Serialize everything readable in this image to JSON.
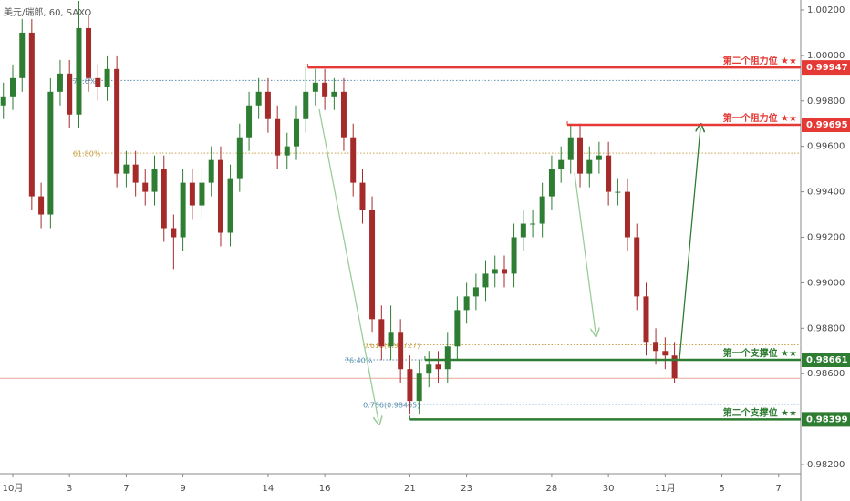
{
  "chart_data": {
    "type": "candlestick",
    "title": "美元/瑞郎, 60, SAXO",
    "x": [
      -0.33,
      0,
      0.33,
      0.67,
      1,
      1.33,
      1.67,
      2,
      2.33,
      2.67,
      3,
      3.33,
      3.67,
      4,
      4.33,
      4.67,
      5,
      5.33,
      5.67,
      6,
      6.33,
      6.67,
      7,
      7.33,
      7.67,
      8,
      8.33,
      8.67,
      9,
      9.33,
      9.67,
      10,
      10.33,
      10.67,
      11,
      11.33,
      11.67,
      12,
      12.33,
      12.67,
      13,
      13.33,
      13.67,
      14,
      14.33,
      14.67,
      15,
      15.33,
      15.67,
      16,
      16.33,
      16.67,
      17,
      17.33,
      17.67,
      18,
      18.33,
      18.67,
      19,
      19.33,
      19.67,
      20,
      20.33,
      20.67,
      21,
      21.33,
      21.67,
      22,
      22.33,
      22.67,
      23,
      23.33
    ],
    "open": [
      0.9978,
      0.9982,
      0.999,
      1.001,
      0.9938,
      0.993,
      0.9984,
      0.9992,
      0.9974,
      1.0012,
      0.999,
      0.9986,
      0.9994,
      0.9948,
      0.9952,
      0.9944,
      0.994,
      0.995,
      0.9924,
      0.992,
      0.9944,
      0.9934,
      0.9944,
      0.9954,
      0.9922,
      0.9946,
      0.9964,
      0.9978,
      0.9984,
      0.9972,
      0.9956,
      0.996,
      0.9972,
      0.9984,
      0.9988,
      0.9982,
      0.9984,
      0.9964,
      0.9944,
      0.9932,
      0.9884,
      0.9872,
      0.9878,
      0.9862,
      0.9848,
      0.986,
      0.9864,
      0.9862,
      0.9872,
      0.9888,
      0.9894,
      0.9898,
      0.9904,
      0.9906,
      0.9904,
      0.992,
      0.9926,
      0.9926,
      0.9938,
      0.995,
      0.9954,
      0.9964,
      0.9948,
      0.9954,
      0.9956,
      0.994,
      0.994,
      0.992,
      0.9894,
      0.9874,
      0.987,
      0.9868
    ],
    "high": [
      0.9988,
      0.9996,
      1.0016,
      1.0016,
      0.9944,
      0.999,
      0.9998,
      0.9998,
      1.0024,
      1.0018,
      0.9996,
      1.0,
      1.0,
      0.9958,
      0.9958,
      0.995,
      0.9956,
      0.9956,
      0.993,
      0.995,
      0.995,
      0.995,
      0.996,
      0.996,
      0.9952,
      0.997,
      0.9984,
      0.999,
      0.999,
      0.9978,
      0.9966,
      0.9978,
      0.9995,
      0.9994,
      0.9994,
      0.999,
      0.999,
      0.997,
      0.995,
      0.9938,
      0.989,
      0.989,
      0.9884,
      0.9868,
      0.9866,
      0.987,
      0.987,
      0.9878,
      0.9894,
      0.99,
      0.9904,
      0.991,
      0.9912,
      0.9912,
      0.9926,
      0.9932,
      0.9932,
      0.9944,
      0.9956,
      0.996,
      0.997,
      0.997,
      0.996,
      0.9962,
      0.9962,
      0.9946,
      0.9946,
      0.9926,
      0.99,
      0.988,
      0.9876,
      0.9874
    ],
    "low": [
      0.9972,
      0.9976,
      0.9984,
      0.9932,
      0.9924,
      0.9924,
      0.9978,
      0.9968,
      0.9968,
      0.9984,
      0.998,
      0.998,
      0.9942,
      0.9942,
      0.9938,
      0.9934,
      0.9934,
      0.9918,
      0.9906,
      0.9914,
      0.9928,
      0.9928,
      0.9938,
      0.9916,
      0.9916,
      0.994,
      0.9958,
      0.9972,
      0.9966,
      0.995,
      0.995,
      0.9954,
      0.9966,
      0.9978,
      0.9976,
      0.9976,
      0.9958,
      0.9938,
      0.9926,
      0.9878,
      0.9866,
      0.9866,
      0.9856,
      0.9842,
      0.9842,
      0.9854,
      0.9856,
      0.9856,
      0.9866,
      0.9882,
      0.9888,
      0.9892,
      0.9898,
      0.9898,
      0.9898,
      0.9914,
      0.992,
      0.992,
      0.9932,
      0.9944,
      0.9948,
      0.9942,
      0.9942,
      0.9948,
      0.9934,
      0.9934,
      0.9914,
      0.9888,
      0.9868,
      0.9864,
      0.9862,
      0.9856
    ],
    "close": [
      0.9982,
      0.999,
      1.001,
      0.9938,
      0.993,
      0.9984,
      0.9992,
      0.9974,
      1.0012,
      0.999,
      0.9986,
      0.9994,
      0.9948,
      0.9952,
      0.9944,
      0.994,
      0.995,
      0.9924,
      0.992,
      0.9944,
      0.9934,
      0.9944,
      0.9954,
      0.9922,
      0.9946,
      0.9964,
      0.9978,
      0.9984,
      0.9972,
      0.9956,
      0.996,
      0.9972,
      0.9984,
      0.9988,
      0.9982,
      0.9984,
      0.9964,
      0.9944,
      0.9932,
      0.9884,
      0.9872,
      0.9878,
      0.9862,
      0.9848,
      0.986,
      0.9864,
      0.9862,
      0.9872,
      0.9888,
      0.9894,
      0.9898,
      0.9904,
      0.9906,
      0.9904,
      0.992,
      0.9926,
      0.9926,
      0.9938,
      0.995,
      0.9954,
      0.9964,
      0.9948,
      0.9954,
      0.9956,
      0.994,
      0.994,
      0.992,
      0.9894,
      0.9874,
      0.987,
      0.9868,
      0.9858
    ],
    "up_color": "#2e7d32",
    "down_color": "#a52a2a",
    "last_price_color": "#e8a89c",
    "xlim": [
      -0.45,
      27.78
    ],
    "xticks": [
      {
        "value": 0,
        "label": "10月"
      },
      {
        "value": 2,
        "label": "3"
      },
      {
        "value": 4,
        "label": "7"
      },
      {
        "value": 6,
        "label": "9"
      },
      {
        "value": 9,
        "label": "14"
      },
      {
        "value": 11,
        "label": "16"
      },
      {
        "value": 14,
        "label": "21"
      },
      {
        "value": 16,
        "label": "23"
      },
      {
        "value": 19,
        "label": "28"
      },
      {
        "value": 21,
        "label": "30"
      },
      {
        "value": 23,
        "label": "11月"
      },
      {
        "value": 25,
        "label": "5"
      },
      {
        "value": 27,
        "label": "7"
      }
    ],
    "ylim": [
      0.9816,
      1.00244
    ],
    "yticks": [
      {
        "value": 1.002,
        "label": "1.00200"
      },
      {
        "value": 1.0,
        "label": "1.00000"
      },
      {
        "value": 0.998,
        "label": "0.99800"
      },
      {
        "value": 0.996,
        "label": "0.99600"
      },
      {
        "value": 0.994,
        "label": "0.99400"
      },
      {
        "value": 0.992,
        "label": "0.99200"
      },
      {
        "value": 0.99,
        "label": "0.99000"
      },
      {
        "value": 0.988,
        "label": "0.98800"
      },
      {
        "value": 0.986,
        "label": "0.98600"
      },
      {
        "value": 0.982,
        "label": "0.98200"
      }
    ],
    "levels": [
      {
        "label": "第二个阻力位 ★★",
        "value": 0.99947,
        "from": 10.4,
        "color": "#e53935"
      },
      {
        "label": "第一个阻力位 ★★",
        "value": 0.99695,
        "from": 19.55,
        "color": "#e53935"
      },
      {
        "label": "第一个支撑位 ★★",
        "value": 0.98661,
        "from": 14.53,
        "color": "#2e7d32"
      },
      {
        "label": "第二个支撑位 ★★",
        "value": 0.98399,
        "from": 14.0,
        "color": "#2e7d32"
      }
    ],
    "fib_lines": [
      {
        "label": "78.6%",
        "value": 0.9989,
        "from": 2.12,
        "color": "#5b8fb0"
      },
      {
        "label": "61.80%",
        "value": 0.9957,
        "from": 2.12,
        "color": "#c9a24a"
      },
      {
        "label": "0.618(0.98727)",
        "value": 0.98727,
        "from": 12.35,
        "color": "#c9a24a"
      },
      {
        "label": "76.40%",
        "value": 0.98661,
        "from": 11.7,
        "color": "#5b8fb0"
      },
      {
        "label": "0.786(0.98465)",
        "value": 0.98465,
        "from": 12.35,
        "color": "#5b8fb0"
      }
    ]
  }
}
